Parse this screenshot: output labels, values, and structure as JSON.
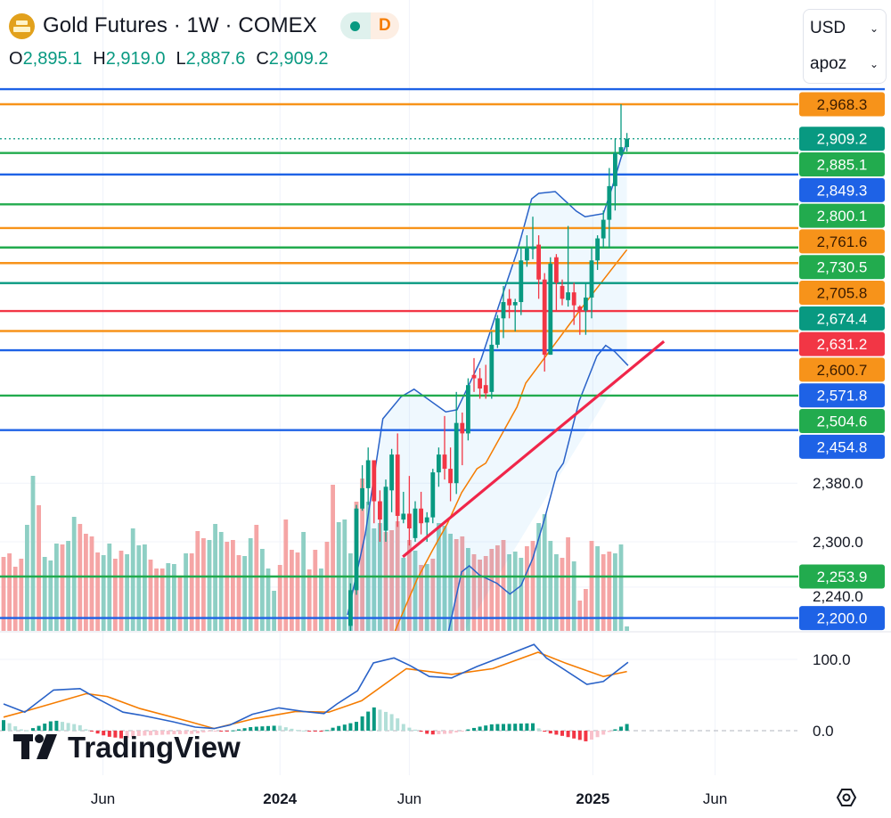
{
  "header": {
    "title": "Gold Futures · 1W · COMEX",
    "status_badge": "D",
    "ohlc": {
      "o_label": "O",
      "o": "2,895.1",
      "h_label": "H",
      "h": "2,919.0",
      "l_label": "L",
      "l": "2,887.6",
      "c_label": "C",
      "c": "2,909.2"
    }
  },
  "controls": {
    "currency": "USD",
    "unit": "apoz"
  },
  "logo": "TradingView",
  "colors": {
    "up": "#089981",
    "down": "#f23645",
    "green": "#22ab4e",
    "blue": "#1e62e6",
    "orange": "#f7931a",
    "red": "#f23645",
    "teal": "#089981",
    "ma": "#f57c00",
    "bb": "#2962c8"
  },
  "chart_data": {
    "type": "candlestick",
    "title": "Gold Futures · 1W · COMEX",
    "scale": "log",
    "first_candle_week": 59,
    "candles_ohlc": [
      [
        2190,
        2245,
        2175,
        2236
      ],
      [
        2236,
        2350,
        2230,
        2345
      ],
      [
        2345,
        2405,
        2342,
        2373
      ],
      [
        2373,
        2430,
        2350,
        2412
      ],
      [
        2412,
        2412,
        2325,
        2355
      ],
      [
        2355,
        2370,
        2300,
        2330
      ],
      [
        2315,
        2385,
        2300,
        2375
      ],
      [
        2370,
        2428,
        2340,
        2420
      ],
      [
        2420,
        2450,
        2320,
        2335
      ],
      [
        2330,
        2368,
        2325,
        2338
      ],
      [
        2338,
        2390,
        2295,
        2318
      ],
      [
        2305,
        2355,
        2300,
        2345
      ],
      [
        2345,
        2368,
        2310,
        2325
      ],
      [
        2326,
        2340,
        2300,
        2333
      ],
      [
        2333,
        2400,
        2325,
        2395
      ],
      [
        2395,
        2430,
        2375,
        2420
      ],
      [
        2420,
        2475,
        2385,
        2400
      ],
      [
        2400,
        2430,
        2355,
        2380
      ],
      [
        2380,
        2510,
        2365,
        2465
      ],
      [
        2465,
        2480,
        2405,
        2450
      ],
      [
        2450,
        2530,
        2440,
        2520
      ],
      [
        2535,
        2560,
        2510,
        2530
      ],
      [
        2530,
        2545,
        2500,
        2515
      ],
      [
        2520,
        2550,
        2500,
        2508
      ],
      [
        2510,
        2600,
        2500,
        2580
      ],
      [
        2580,
        2625,
        2575,
        2620
      ],
      [
        2620,
        2670,
        2590,
        2645
      ],
      [
        2650,
        2665,
        2620,
        2640
      ],
      [
        2640,
        2650,
        2600,
        2645
      ],
      [
        2645,
        2730,
        2625,
        2710
      ],
      [
        2710,
        2750,
        2700,
        2730
      ],
      [
        2728,
        2780,
        2712,
        2732
      ],
      [
        2735,
        2750,
        2650,
        2680
      ],
      [
        2680,
        2690,
        2540,
        2565
      ],
      [
        2565,
        2715,
        2565,
        2705
      ],
      [
        2715,
        2720,
        2630,
        2675
      ],
      [
        2670,
        2680,
        2640,
        2650
      ],
      [
        2648,
        2765,
        2638,
        2660
      ],
      [
        2660,
        2675,
        2610,
        2640
      ],
      [
        2638,
        2640,
        2595,
        2630
      ],
      [
        2632,
        2675,
        2595,
        2652
      ],
      [
        2652,
        2730,
        2620,
        2710
      ],
      [
        2710,
        2750,
        2695,
        2745
      ],
      [
        2745,
        2790,
        2730,
        2775
      ],
      [
        2775,
        2860,
        2730,
        2830
      ],
      [
        2830,
        2910,
        2790,
        2885
      ],
      [
        2882,
        2968.3,
        2880,
        2895
      ],
      [
        2895.1,
        2919.0,
        2887.6,
        2909.2
      ]
    ],
    "volume": [
      83,
      87,
      72,
      81,
      119,
      174,
      141,
      83,
      79,
      98,
      97,
      101,
      128,
      120,
      109,
      106,
      88,
      85,
      98,
      81,
      90,
      86,
      115,
      96,
      97,
      80,
      70,
      70,
      76,
      75,
      60,
      87,
      87,
      112,
      104,
      102,
      120,
      111,
      100,
      102,
      85,
      84,
      104,
      119,
      92,
      70,
      45,
      74,
      125,
      91,
      88,
      111,
      69,
      91,
      70,
      100,
      164,
      122,
      125,
      87,
      145,
      171,
      145,
      115,
      121,
      111,
      113,
      123,
      82,
      102,
      90,
      74,
      75,
      81,
      121,
      118,
      109,
      103,
      106,
      93,
      86,
      80,
      84,
      92,
      96,
      102,
      86,
      89,
      82,
      95,
      101,
      121,
      131,
      101,
      86,
      82,
      105,
      78,
      34,
      47,
      101,
      95,
      86,
      89,
      87,
      97,
      5
    ],
    "volume_dir": "dddduuduuuduudddduudduuuuddduududdduuuddduuduuudddduddudduuudduuudddudududuuuddudddddduuudduuuuddudddudduuuuuuuuuu",
    "bollinger_upper": [
      [
        58.5,
        2204
      ],
      [
        61.5,
        2310
      ],
      [
        64.5,
        2471
      ],
      [
        67.6,
        2503
      ],
      [
        69.8,
        2514
      ],
      [
        75.2,
        2481
      ],
      [
        77.1,
        2484
      ],
      [
        81.2,
        2558
      ],
      [
        84.2,
        2639
      ],
      [
        87.3,
        2723
      ],
      [
        89.8,
        2809
      ],
      [
        91,
        2818
      ],
      [
        93.8,
        2821
      ],
      [
        97.4,
        2789
      ],
      [
        98.9,
        2780
      ],
      [
        102,
        2785
      ],
      [
        103.5,
        2828
      ],
      [
        105,
        2877
      ],
      [
        106,
        2903
      ]
    ],
    "bollinger_lower": [
      [
        75.6,
        2181
      ],
      [
        77.9,
        2260
      ],
      [
        79.2,
        2268
      ],
      [
        80.9,
        2256
      ],
      [
        83.9,
        2245
      ],
      [
        86.1,
        2231
      ],
      [
        88,
        2242
      ],
      [
        90,
        2278
      ],
      [
        92.1,
        2334
      ],
      [
        94.1,
        2395
      ],
      [
        95.2,
        2408
      ],
      [
        97.9,
        2497
      ],
      [
        100.9,
        2563
      ],
      [
        102.4,
        2579
      ],
      [
        103.9,
        2570
      ],
      [
        106.2,
        2549
      ]
    ],
    "moving_average": [
      [
        65.8,
        2170
      ],
      [
        70.3,
        2250
      ],
      [
        72.9,
        2288
      ],
      [
        75.5,
        2325
      ],
      [
        77.9,
        2367
      ],
      [
        80.5,
        2400
      ],
      [
        82,
        2408
      ],
      [
        87.3,
        2488
      ],
      [
        88.8,
        2523
      ],
      [
        98.9,
        2643
      ],
      [
        106,
        2727
      ]
    ],
    "trendline": [
      [
        67.9,
        2280
      ],
      [
        112.3,
        2585
      ]
    ],
    "horizontal_levels": [
      {
        "price": 2994.6,
        "color": "blue",
        "label": ""
      },
      {
        "price": 2968.3,
        "color": "orange",
        "label": "2,968.3"
      },
      {
        "price": 2909.2,
        "color": "teal",
        "label": "2,909.2",
        "style": "dotted"
      },
      {
        "price": 2885.1,
        "color": "green",
        "label": "2,885.1"
      },
      {
        "price": 2849.3,
        "color": "blue",
        "label": "2,849.3"
      },
      {
        "price": 2800.1,
        "color": "green",
        "label": "2,800.1"
      },
      {
        "price": 2761.6,
        "color": "orange",
        "label": "2,761.6"
      },
      {
        "price": 2730.5,
        "color": "green",
        "label": "2,730.5"
      },
      {
        "price": 2705.8,
        "color": "orange",
        "label": "2,705.8"
      },
      {
        "price": 2674.4,
        "color": "teal",
        "label": "2,674.4"
      },
      {
        "price": 2631.2,
        "color": "red",
        "label": "2,631.2"
      },
      {
        "price": 2600.7,
        "color": "orange",
        "label": "2,600.7"
      },
      {
        "price": 2571.8,
        "color": "blue",
        "label": "2,571.8"
      },
      {
        "price": 2504.6,
        "color": "green",
        "label": "2,504.6"
      },
      {
        "price": 2454.8,
        "color": "blue",
        "label": "2,454.8"
      },
      {
        "price": 2253.9,
        "color": "green",
        "label": "2,253.9"
      },
      {
        "price": 2200.0,
        "color": "blue",
        "label": "2,200.0"
      }
    ],
    "y_ticks": [
      {
        "price": 2380,
        "label": "2,380.0"
      },
      {
        "price": 2300,
        "label": "2,300.0"
      },
      {
        "price": 2240,
        "label": "2,240.0"
      }
    ],
    "x_ticks": [
      {
        "week": 16.9,
        "label": "Jun",
        "bold": false
      },
      {
        "week": 47,
        "label": "2024",
        "bold": true
      },
      {
        "week": 69,
        "label": "Jun",
        "bold": false
      },
      {
        "week": 100.2,
        "label": "2025",
        "bold": true
      },
      {
        "week": 121,
        "label": "Jun",
        "bold": false
      }
    ],
    "oscillator": {
      "ticks": [
        {
          "value": 100,
          "label": "100.0"
        },
        {
          "value": 0,
          "label": "0.0"
        }
      ],
      "macd": [
        [
          0,
          37.5
        ],
        [
          3.6,
          26
        ],
        [
          8.5,
          57
        ],
        [
          13,
          59
        ],
        [
          15.5,
          47
        ],
        [
          20.3,
          26
        ],
        [
          23.2,
          22
        ],
        [
          28.8,
          12.5
        ],
        [
          32.6,
          5
        ],
        [
          35.8,
          3
        ],
        [
          38.5,
          8
        ],
        [
          42.3,
          23
        ],
        [
          46.8,
          32
        ],
        [
          51,
          27
        ],
        [
          54.5,
          24
        ],
        [
          56.7,
          37.5
        ],
        [
          60.2,
          56
        ],
        [
          62.9,
          95
        ],
        [
          66.4,
          102
        ],
        [
          69.2,
          91
        ],
        [
          72.4,
          76
        ],
        [
          76.2,
          74
        ],
        [
          80.5,
          90
        ],
        [
          85.9,
          107
        ],
        [
          90.2,
          121
        ],
        [
          92.3,
          102
        ],
        [
          99.2,
          65
        ],
        [
          102,
          69
        ],
        [
          106.2,
          96
        ]
      ],
      "signal": [
        [
          0,
          19
        ],
        [
          3.6,
          27
        ],
        [
          14.1,
          52
        ],
        [
          17.6,
          48
        ],
        [
          23.2,
          31
        ],
        [
          31.5,
          13
        ],
        [
          35.8,
          3
        ],
        [
          42.7,
          17
        ],
        [
          49.7,
          27
        ],
        [
          55.3,
          26
        ],
        [
          60.9,
          42
        ],
        [
          68.5,
          87
        ],
        [
          76.2,
          79
        ],
        [
          83.2,
          87
        ],
        [
          90.9,
          110
        ],
        [
          95.8,
          94
        ],
        [
          102,
          76
        ],
        [
          106,
          83
        ]
      ]
    }
  }
}
